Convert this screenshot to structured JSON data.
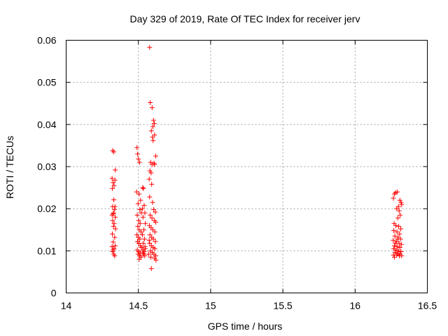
{
  "chart_data": {
    "type": "scatter",
    "title": "Day 329 of 2019, Rate Of TEC Index for receiver jerv",
    "xlabel": "GPS time / hours",
    "ylabel": "ROTI / TECUs",
    "xlim": [
      14,
      16.5
    ],
    "ylim": [
      0,
      0.06
    ],
    "xticks": [
      "14",
      "14.5",
      "15",
      "15.5",
      "16",
      "16.5"
    ],
    "yticks": [
      "0",
      "0.01",
      "0.02",
      "0.03",
      "0.04",
      "0.05",
      "0.06"
    ],
    "grid": true,
    "marker": "+",
    "color": "#ff0000",
    "series": [
      {
        "name": "ROTI",
        "points": [
          [
            14.322,
            0.0338
          ],
          [
            14.33,
            0.0335
          ],
          [
            14.318,
            0.0272
          ],
          [
            14.325,
            0.0262
          ],
          [
            14.332,
            0.0255
          ],
          [
            14.34,
            0.0292
          ],
          [
            14.338,
            0.0268
          ],
          [
            14.32,
            0.0248
          ],
          [
            14.33,
            0.0221
          ],
          [
            14.322,
            0.0205
          ],
          [
            14.335,
            0.0198
          ],
          [
            14.328,
            0.019
          ],
          [
            14.318,
            0.0185
          ],
          [
            14.34,
            0.018
          ],
          [
            14.322,
            0.0172
          ],
          [
            14.332,
            0.0165
          ],
          [
            14.328,
            0.0158
          ],
          [
            14.342,
            0.0152
          ],
          [
            14.32,
            0.014
          ],
          [
            14.336,
            0.0132
          ],
          [
            14.326,
            0.0121
          ],
          [
            14.318,
            0.011
          ],
          [
            14.332,
            0.0105
          ],
          [
            14.34,
            0.0112
          ],
          [
            14.322,
            0.0098
          ],
          [
            14.33,
            0.0092
          ],
          [
            14.336,
            0.0088
          ],
          [
            14.324,
            0.0102
          ],
          [
            14.338,
            0.0205
          ],
          [
            14.326,
            0.0188
          ],
          [
            14.49,
            0.0345
          ],
          [
            14.5,
            0.0318
          ],
          [
            14.508,
            0.031
          ],
          [
            14.495,
            0.033
          ],
          [
            14.488,
            0.024
          ],
          [
            14.505,
            0.0235
          ],
          [
            14.515,
            0.022
          ],
          [
            14.498,
            0.0212
          ],
          [
            14.51,
            0.0198
          ],
          [
            14.52,
            0.019
          ],
          [
            14.492,
            0.0185
          ],
          [
            14.502,
            0.0172
          ],
          [
            14.512,
            0.0165
          ],
          [
            14.496,
            0.0158
          ],
          [
            14.506,
            0.015
          ],
          [
            14.518,
            0.0145
          ],
          [
            14.49,
            0.0138
          ],
          [
            14.5,
            0.0132
          ],
          [
            14.51,
            0.0128
          ],
          [
            14.494,
            0.0122
          ],
          [
            14.504,
            0.0118
          ],
          [
            14.514,
            0.0112
          ],
          [
            14.522,
            0.0108
          ],
          [
            14.492,
            0.0102
          ],
          [
            14.502,
            0.0098
          ],
          [
            14.512,
            0.0095
          ],
          [
            14.498,
            0.0092
          ],
          [
            14.508,
            0.0088
          ],
          [
            14.518,
            0.0085
          ],
          [
            14.506,
            0.008
          ],
          [
            14.53,
            0.025
          ],
          [
            14.535,
            0.0248
          ],
          [
            14.54,
            0.0208
          ],
          [
            14.528,
            0.02
          ],
          [
            14.545,
            0.019
          ],
          [
            14.532,
            0.018
          ],
          [
            14.548,
            0.0165
          ],
          [
            14.538,
            0.015
          ],
          [
            14.528,
            0.0138
          ],
          [
            14.542,
            0.0128
          ],
          [
            14.534,
            0.0118
          ],
          [
            14.546,
            0.011
          ],
          [
            14.53,
            0.0102
          ],
          [
            14.54,
            0.0098
          ],
          [
            14.536,
            0.0092
          ],
          [
            14.544,
            0.0088
          ],
          [
            14.532,
            0.0095
          ],
          [
            14.548,
            0.0105
          ],
          [
            14.578,
            0.0583
          ],
          [
            14.582,
            0.0452
          ],
          [
            14.595,
            0.044
          ],
          [
            14.605,
            0.041
          ],
          [
            14.61,
            0.0402
          ],
          [
            14.6,
            0.0395
          ],
          [
            14.59,
            0.0385
          ],
          [
            14.612,
            0.0375
          ],
          [
            14.598,
            0.037
          ],
          [
            14.602,
            0.0362
          ],
          [
            14.62,
            0.0325
          ],
          [
            14.585,
            0.031
          ],
          [
            14.595,
            0.0305
          ],
          [
            14.608,
            0.0308
          ],
          [
            14.612,
            0.0305
          ],
          [
            14.58,
            0.029
          ],
          [
            14.588,
            0.0285
          ],
          [
            14.575,
            0.027
          ],
          [
            14.592,
            0.0258
          ],
          [
            14.578,
            0.0228
          ],
          [
            14.598,
            0.0215
          ],
          [
            14.606,
            0.0198
          ],
          [
            14.618,
            0.0192
          ],
          [
            14.582,
            0.0185
          ],
          [
            14.594,
            0.0178
          ],
          [
            14.61,
            0.0172
          ],
          [
            14.62,
            0.0168
          ],
          [
            14.576,
            0.016
          ],
          [
            14.588,
            0.0155
          ],
          [
            14.6,
            0.015
          ],
          [
            14.614,
            0.0145
          ],
          [
            14.58,
            0.0138
          ],
          [
            14.592,
            0.0132
          ],
          [
            14.604,
            0.0128
          ],
          [
            14.618,
            0.0122
          ],
          [
            14.578,
            0.0118
          ],
          [
            14.59,
            0.0112
          ],
          [
            14.602,
            0.0108
          ],
          [
            14.614,
            0.0105
          ],
          [
            14.584,
            0.01
          ],
          [
            14.596,
            0.0096
          ],
          [
            14.608,
            0.0092
          ],
          [
            14.62,
            0.0088
          ],
          [
            14.586,
            0.0085
          ],
          [
            14.612,
            0.0082
          ],
          [
            14.622,
            0.0078
          ],
          [
            14.59,
            0.0058
          ],
          [
            14.57,
            0.0092
          ],
          [
            14.575,
            0.0125
          ],
          [
            16.265,
            0.0225
          ],
          [
            16.272,
            0.0235
          ],
          [
            16.28,
            0.0238
          ],
          [
            16.292,
            0.024
          ],
          [
            16.31,
            0.022
          ],
          [
            16.318,
            0.0215
          ],
          [
            16.322,
            0.021
          ],
          [
            16.3,
            0.0205
          ],
          [
            16.288,
            0.02
          ],
          [
            16.305,
            0.0195
          ],
          [
            16.312,
            0.0185
          ],
          [
            16.296,
            0.0178
          ],
          [
            16.27,
            0.0165
          ],
          [
            16.282,
            0.016
          ],
          [
            16.302,
            0.0158
          ],
          [
            16.316,
            0.0152
          ],
          [
            16.268,
            0.0148
          ],
          [
            16.29,
            0.0145
          ],
          [
            16.308,
            0.014
          ],
          [
            16.275,
            0.0135
          ],
          [
            16.298,
            0.0132
          ],
          [
            16.314,
            0.0128
          ],
          [
            16.264,
            0.0125
          ],
          [
            16.286,
            0.0122
          ],
          [
            16.304,
            0.0118
          ],
          [
            16.32,
            0.0115
          ],
          [
            16.272,
            0.0112
          ],
          [
            16.292,
            0.011
          ],
          [
            16.31,
            0.0108
          ],
          [
            16.268,
            0.0105
          ],
          [
            16.284,
            0.0102
          ],
          [
            16.3,
            0.01
          ],
          [
            16.318,
            0.0098
          ],
          [
            16.276,
            0.0096
          ],
          [
            16.294,
            0.0094
          ],
          [
            16.312,
            0.0092
          ],
          [
            16.266,
            0.009
          ],
          [
            16.288,
            0.009
          ],
          [
            16.306,
            0.0088
          ],
          [
            16.322,
            0.0088
          ],
          [
            16.28,
            0.0118
          ],
          [
            16.296,
            0.0128
          ],
          [
            16.272,
            0.0085
          ]
        ]
      }
    ]
  }
}
